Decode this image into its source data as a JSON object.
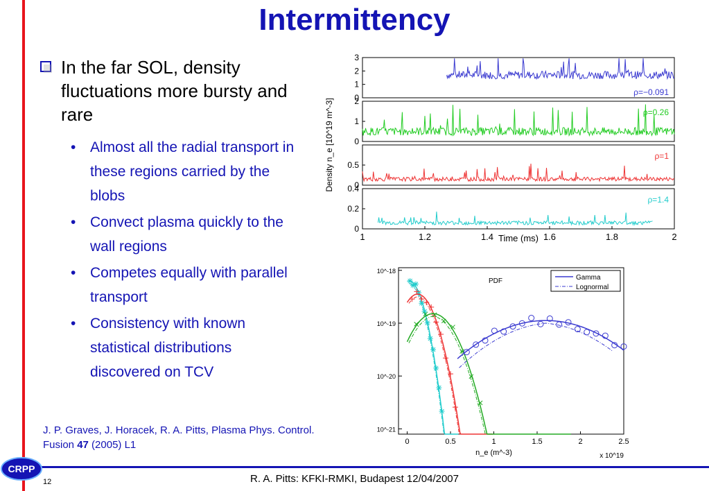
{
  "slide": {
    "title": "Intermittency",
    "main_bullet": "In the far SOL, density fluctuations more bursty and rare",
    "sub_bullets": [
      "Almost all the radial transport in these regions carried by the blobs",
      "Convect plasma quickly to the wall regions",
      "Competes equally with parallel transport",
      "Consistency with known statistical distributions discovered on TCV"
    ],
    "bullet_glyph": "•",
    "citation_pre": "J. P. Graves, J. Horacek, R. A. Pitts, Plasma Phys. Control. Fusion ",
    "citation_vol": "47",
    "citation_post": " (2005) L1",
    "footer": "R. A. Pitts: KFKI-RMKI, Budapest 12/04/2007",
    "page_number": "12",
    "logo_text": "CRPP",
    "colors": {
      "title": "#1414b4",
      "accent_red": "#e8141c",
      "text_blue": "#1414b4"
    }
  },
  "chart_data": [
    {
      "type": "line",
      "xlabel": "Time (ms)",
      "ylabel": "Density n_e [10^19 m^-3]",
      "xlim": [
        1,
        2
      ],
      "x_ticks": [
        "1",
        "1.2",
        "1.4",
        "1.6",
        "1.8",
        "2"
      ],
      "panels": [
        {
          "label": "ρ=−0.091",
          "color": "#3a3ad0",
          "ylim": [
            0,
            3
          ],
          "y_ticks": [
            "0",
            "1",
            "2",
            "3"
          ],
          "t_start": 1.27,
          "t_end": 2.0,
          "baseline": 1.7,
          "amp": 0.6
        },
        {
          "label": "ρ=0.26",
          "color": "#22cc22",
          "ylim": [
            0,
            2
          ],
          "y_ticks": [
            "0",
            "1",
            "2"
          ],
          "t_start": 1.0,
          "t_end": 2.0,
          "baseline": 0.5,
          "amp": 0.4
        },
        {
          "label": "ρ=1",
          "color": "#ee3333",
          "ylim": [
            0,
            1
          ],
          "y_ticks": [
            "0",
            "0.5"
          ],
          "t_start": 1.0,
          "t_end": 2.0,
          "baseline": 0.15,
          "amp": 0.1
        },
        {
          "label": "ρ=1.4",
          "color": "#22cccc",
          "ylim": [
            0,
            0.4
          ],
          "y_ticks": [
            "0",
            "0.2",
            "0.4"
          ],
          "t_start": 1.05,
          "t_end": 1.93,
          "baseline": 0.06,
          "amp": 0.04
        }
      ]
    },
    {
      "type": "scatter",
      "title": "PDF",
      "xlabel": "n_e (m^-3)",
      "x_multiplier": "x 10^19",
      "xlim": [
        -0.1,
        2.5
      ],
      "ylim_log10": [
        -21.1,
        -17.95
      ],
      "x_ticks": [
        "0",
        "0.5",
        "1",
        "1.5",
        "2",
        "2.5"
      ],
      "y_ticks": [
        "10^-18",
        "10^-19",
        "10^-20",
        "10^-21"
      ],
      "legend": {
        "position": "top-right",
        "entries": [
          "Gamma",
          "Lognormal"
        ]
      },
      "series": [
        {
          "color": "#22cccc",
          "marker": "*",
          "peak_x": 0.02,
          "peak_log": -18.2,
          "end_x": 0.6
        },
        {
          "color": "#ee3333",
          "marker": "+",
          "peak_x": 0.12,
          "peak_log": -18.45,
          "end_x": 1.0
        },
        {
          "color": "#22aa22",
          "marker": "x",
          "peak_x": 0.3,
          "peak_log": -18.82,
          "end_x": 1.9
        },
        {
          "color": "#3a3ad0",
          "marker": "o",
          "peak_x": 1.6,
          "peak_log": -18.95,
          "end_x": 2.5
        }
      ]
    }
  ]
}
